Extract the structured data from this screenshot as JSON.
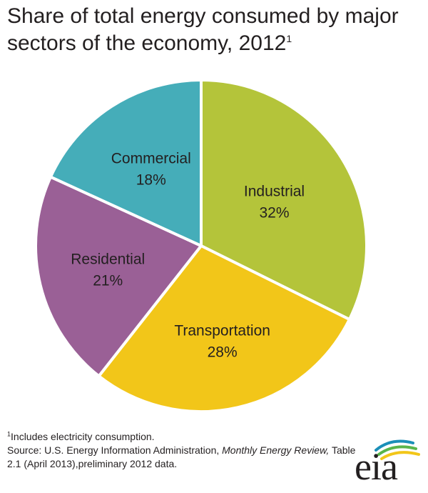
{
  "chart_data": {
    "type": "pie",
    "title": "Share of total energy consumed by major sectors of the economy, 2012",
    "title_superscript": "1",
    "slices": [
      {
        "label": "Industrial",
        "value": 32,
        "value_label": "32%",
        "color": "#b4c43a"
      },
      {
        "label": "Transportation",
        "value": 28,
        "value_label": "28%",
        "color": "#f2c619"
      },
      {
        "label": "Residential",
        "value": 21,
        "value_label": "21%",
        "color": "#9a6096"
      },
      {
        "label": "Commercial",
        "value": 18,
        "value_label": "18%",
        "color": "#45adb9"
      }
    ]
  },
  "footnote": {
    "marker": "1",
    "note": "Includes electricity consumption.",
    "source_prefix": "Source: U.S. Energy Information Administration, ",
    "source_italic": "Monthly Energy Review,",
    "source_suffix": " Table 2.1 (April 2013),preliminary 2012 data."
  },
  "logo": {
    "text": "eia",
    "colors": [
      "#1b8fb8",
      "#5ab54b",
      "#f2c619"
    ]
  }
}
